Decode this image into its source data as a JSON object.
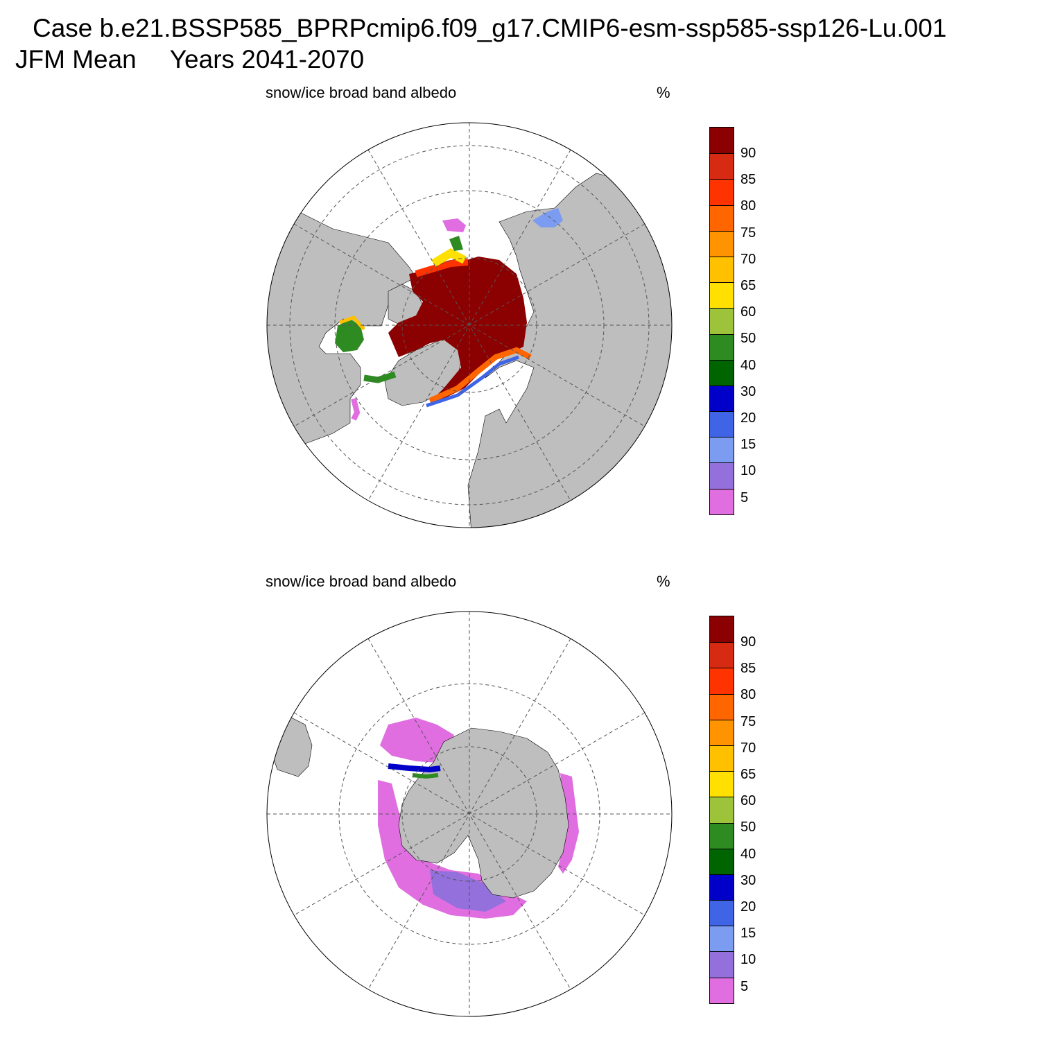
{
  "header": {
    "case_title": "Case b.e21.BSSP585_BPRPcmip6.f09_g17.CMIP6-esm-ssp585-ssp126-Lu.001",
    "season": "JFM Mean",
    "years": "Years 2041-2070"
  },
  "panels": [
    {
      "id": "north",
      "title": "snow/ice broad band albedo",
      "units": "%",
      "hemisphere": "Northern Hemisphere"
    },
    {
      "id": "south",
      "title": "snow/ice broad band albedo",
      "units": "%",
      "hemisphere": "Southern Hemisphere"
    }
  ],
  "colorbar": {
    "levels": [
      "90",
      "85",
      "80",
      "75",
      "70",
      "65",
      "60",
      "50",
      "40",
      "30",
      "20",
      "15",
      "10",
      "5"
    ],
    "colors": [
      "#8b0000",
      "#d62a13",
      "#ff3300",
      "#ff6600",
      "#ff9400",
      "#ffc000",
      "#ffe000",
      "#9dc33b",
      "#2e8b22",
      "#006400",
      "#0000c8",
      "#3f64e6",
      "#7c9cf2",
      "#9370db",
      "#e06ee0"
    ]
  },
  "map_colors": {
    "land": "#bebebe",
    "ocean": "#ffffff",
    "grid": "#555555"
  }
}
